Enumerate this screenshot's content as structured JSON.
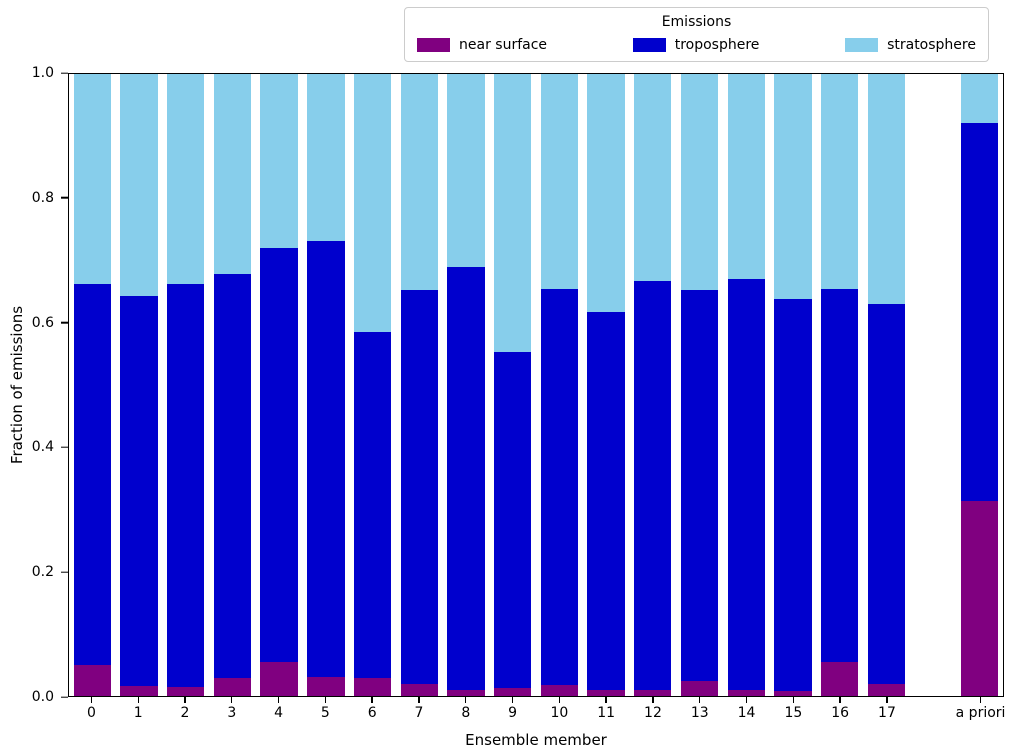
{
  "chart_data": {
    "type": "bar",
    "stacked": true,
    "title": "",
    "xlabel": "Ensemble member",
    "ylabel": "Fraction of emissions",
    "ylim": [
      0,
      1.0
    ],
    "yticks": [
      "0.0",
      "0.2",
      "0.4",
      "0.6",
      "0.8",
      "1.0"
    ],
    "grid": false,
    "legend_title": "Emissions",
    "legend_position": "top-center-outside",
    "categories": [
      "0",
      "1",
      "2",
      "3",
      "4",
      "5",
      "6",
      "7",
      "8",
      "9",
      "10",
      "11",
      "12",
      "13",
      "14",
      "15",
      "16",
      "17",
      "a priori"
    ],
    "spacer_before": [
      "a priori"
    ],
    "series": [
      {
        "name": "near surface",
        "color": "#800080",
        "values": [
          0.05,
          0.016,
          0.014,
          0.029,
          0.054,
          0.03,
          0.029,
          0.019,
          0.01,
          0.013,
          0.018,
          0.01,
          0.01,
          0.024,
          0.01,
          0.008,
          0.054,
          0.019,
          0.314
        ]
      },
      {
        "name": "troposphere",
        "color": "#0000cd",
        "values": [
          0.613,
          0.627,
          0.648,
          0.65,
          0.666,
          0.701,
          0.556,
          0.633,
          0.679,
          0.54,
          0.637,
          0.607,
          0.658,
          0.628,
          0.661,
          0.631,
          0.601,
          0.611,
          0.608
        ]
      },
      {
        "name": "stratosphere",
        "color": "#87ceeb",
        "values": [
          0.337,
          0.357,
          0.338,
          0.321,
          0.28,
          0.269,
          0.415,
          0.348,
          0.311,
          0.447,
          0.345,
          0.383,
          0.332,
          0.348,
          0.329,
          0.361,
          0.345,
          0.37,
          0.078
        ]
      }
    ]
  }
}
